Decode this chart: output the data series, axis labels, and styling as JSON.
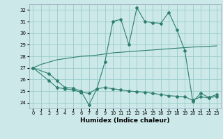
{
  "xlabel": "Humidex (Indice chaleur)",
  "bg_color": "#cce8e8",
  "grid_color": "#99cccc",
  "line_color": "#2e7f6f",
  "xlim": [
    -0.5,
    23.5
  ],
  "ylim": [
    23.5,
    32.5
  ],
  "yticks": [
    24,
    25,
    26,
    27,
    28,
    29,
    30,
    31,
    32
  ],
  "xticks": [
    0,
    1,
    2,
    3,
    4,
    5,
    6,
    7,
    8,
    9,
    10,
    11,
    12,
    13,
    14,
    15,
    16,
    17,
    18,
    19,
    20,
    21,
    22,
    23
  ],
  "series": [
    {
      "x": [
        0,
        1,
        2,
        3,
        4,
        5,
        6,
        7,
        8,
        9,
        10,
        11,
        12,
        13,
        14,
        15,
        16,
        17,
        18,
        19,
        20,
        21,
        22,
        23
      ],
      "y": [
        27.0,
        27.3,
        27.5,
        27.7,
        27.8,
        27.9,
        28.0,
        28.05,
        28.1,
        28.2,
        28.3,
        28.35,
        28.4,
        28.45,
        28.5,
        28.55,
        28.6,
        28.65,
        28.7,
        28.75,
        28.8,
        28.83,
        28.86,
        28.9
      ],
      "markers": false
    },
    {
      "x": [
        0,
        2,
        3,
        4,
        5,
        6,
        7,
        8,
        9,
        10,
        11,
        12,
        13,
        14,
        15,
        16,
        17,
        18,
        19,
        20,
        21,
        22,
        23
      ],
      "y": [
        27.0,
        26.5,
        25.9,
        25.3,
        25.25,
        25.0,
        23.8,
        25.2,
        27.5,
        31.0,
        31.2,
        29.0,
        32.2,
        31.0,
        30.9,
        30.85,
        31.8,
        30.3,
        28.5,
        24.1,
        24.8,
        24.45,
        24.7
      ],
      "markers": true
    },
    {
      "x": [
        0,
        2,
        3,
        4,
        5,
        6,
        7,
        8,
        9,
        10,
        11,
        12,
        13,
        14,
        15,
        16,
        17,
        18,
        19,
        20,
        21,
        22,
        23
      ],
      "y": [
        27.0,
        25.9,
        25.3,
        25.2,
        25.1,
        24.9,
        24.8,
        25.2,
        25.3,
        25.2,
        25.1,
        25.0,
        24.95,
        24.9,
        24.8,
        24.7,
        24.6,
        24.55,
        24.5,
        24.2,
        24.5,
        24.4,
        24.55
      ],
      "markers": true
    }
  ]
}
